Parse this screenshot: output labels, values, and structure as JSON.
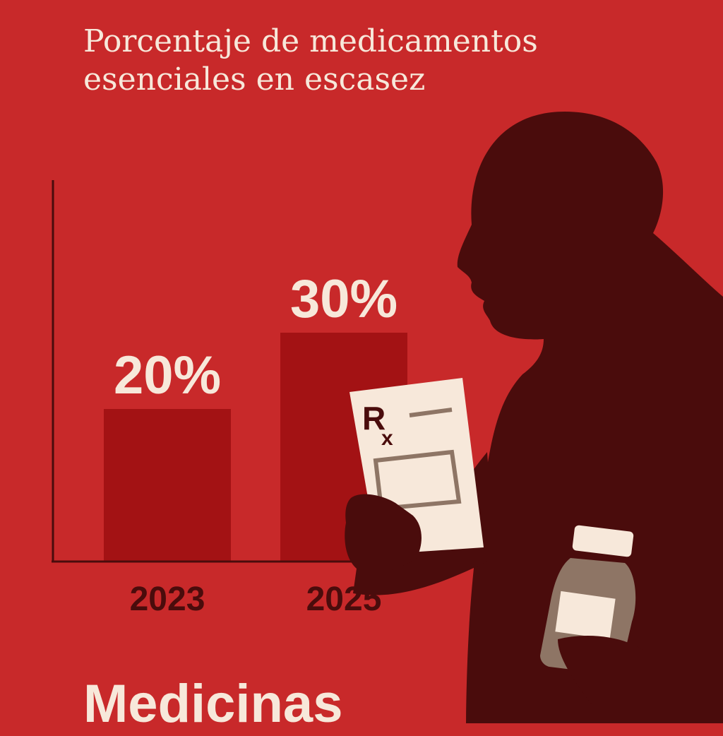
{
  "title": {
    "line1": "Porcentaje de medicamentos",
    "line2": "esenciales en escasez"
  },
  "chart_data": {
    "type": "bar",
    "categories": [
      "2023",
      "2025"
    ],
    "values": [
      20,
      30
    ],
    "value_labels": [
      "20%",
      "30%"
    ],
    "title": "Porcentaje de medicamentos esenciales en escasez",
    "xlabel": "",
    "ylabel": "",
    "unit": "%",
    "ylim": [
      0,
      50
    ],
    "grid": false,
    "legend": "none"
  },
  "prescription": {
    "symbol_r": "R",
    "symbol_x": "x"
  },
  "footer": {
    "word": "Medicinas"
  },
  "colors": {
    "background": "#c8292a",
    "bar": "#a31214",
    "text_light": "#f7e8da",
    "silhouette": "#4a0c0c",
    "axis": "#4a0c0c",
    "paper": "#f7e8da",
    "bottle": "#8e7565"
  },
  "icons": [
    "person-silhouette-icon",
    "prescription-icon",
    "pill-bottle-icon"
  ]
}
